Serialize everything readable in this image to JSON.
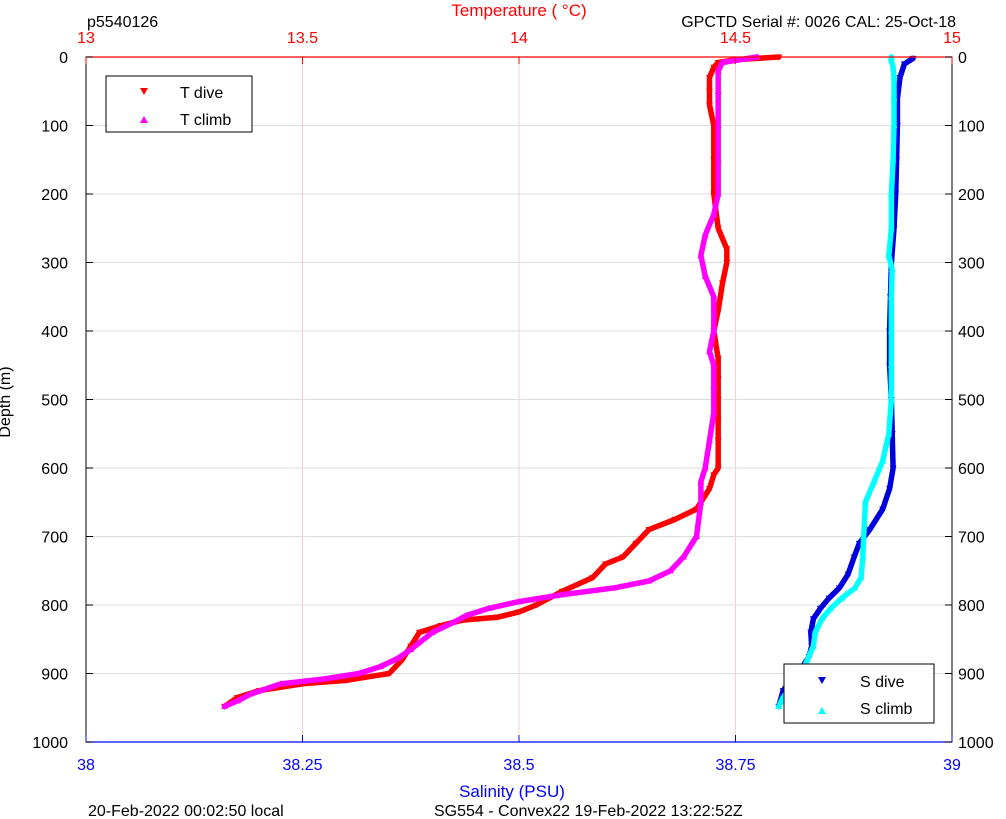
{
  "header": {
    "profile_id": "p5540126",
    "serial_info": "GPCTD Serial #: 0026 CAL: 25-Oct-18"
  },
  "footer": {
    "local_time": "20-Feb-2022 00:02:50 local",
    "mission_info": "SG554 - Convex22 19-Feb-2022 13:22:52Z"
  },
  "colors": {
    "temperature_axis": "#ff0000",
    "salinity_axis": "#0000ff",
    "t_dive": "#ff0000",
    "t_climb": "#ff00ff",
    "s_dive": "#0000dd",
    "s_climb": "#00ffff",
    "grid_temperature": "#ffcccc",
    "grid_depth": "#dddddd"
  },
  "chart_data": {
    "type": "line",
    "top_axis": {
      "label": "Temperature (    °C)",
      "range": [
        13,
        15
      ],
      "ticks": [
        13,
        13.5,
        14,
        14.5,
        15
      ],
      "tick_labels": [
        "13",
        "13.5",
        "14",
        "14.5",
        "15"
      ]
    },
    "bottom_axis": {
      "label": "Salinity (PSU)",
      "range": [
        38,
        39
      ],
      "ticks": [
        38,
        38.25,
        38.5,
        38.75,
        39
      ],
      "tick_labels": [
        "38",
        "38.25",
        "38.5",
        "38.75",
        "39"
      ]
    },
    "y_axis": {
      "label": "Depth (m)",
      "range": [
        0,
        1000
      ],
      "reversed": true,
      "ticks": [
        0,
        100,
        200,
        300,
        400,
        500,
        600,
        700,
        800,
        900,
        1000
      ],
      "tick_labels": [
        "0",
        "100",
        "200",
        "300",
        "400",
        "500",
        "600",
        "700",
        "800",
        "900",
        "1000"
      ]
    },
    "legend_temperature": {
      "placement": "top-left",
      "entries": [
        "T dive",
        "T climb"
      ]
    },
    "legend_salinity": {
      "placement": "bottom-right",
      "entries": [
        "S dive",
        "S climb"
      ]
    },
    "series": [
      {
        "name": "T dive",
        "axis": "temperature",
        "marker": "triangle-down",
        "points": [
          [
            14.6,
            0
          ],
          [
            14.5,
            4
          ],
          [
            14.46,
            8
          ],
          [
            14.45,
            15
          ],
          [
            14.44,
            30
          ],
          [
            14.44,
            50
          ],
          [
            14.44,
            70
          ],
          [
            14.45,
            100
          ],
          [
            14.45,
            150
          ],
          [
            14.45,
            200
          ],
          [
            14.46,
            250
          ],
          [
            14.48,
            280
          ],
          [
            14.48,
            300
          ],
          [
            14.47,
            330
          ],
          [
            14.46,
            370
          ],
          [
            14.45,
            400
          ],
          [
            14.46,
            440
          ],
          [
            14.46,
            470
          ],
          [
            14.46,
            500
          ],
          [
            14.46,
            530
          ],
          [
            14.46,
            560
          ],
          [
            14.46,
            600
          ],
          [
            14.45,
            610
          ],
          [
            14.44,
            630
          ],
          [
            14.41,
            660
          ],
          [
            14.36,
            675
          ],
          [
            14.3,
            690
          ],
          [
            14.27,
            710
          ],
          [
            14.24,
            730
          ],
          [
            14.2,
            740
          ],
          [
            14.17,
            760
          ],
          [
            14.1,
            780
          ],
          [
            14.07,
            790
          ],
          [
            14.04,
            800
          ],
          [
            14.0,
            810
          ],
          [
            13.95,
            818
          ],
          [
            13.87,
            822
          ],
          [
            13.82,
            830
          ],
          [
            13.77,
            840
          ],
          [
            13.75,
            860
          ],
          [
            13.73,
            880
          ],
          [
            13.7,
            900
          ],
          [
            13.6,
            910
          ],
          [
            13.5,
            915
          ],
          [
            13.4,
            925
          ],
          [
            13.35,
            935
          ],
          [
            13.32,
            948
          ]
        ]
      },
      {
        "name": "T climb",
        "axis": "temperature",
        "marker": "triangle-up",
        "points": [
          [
            13.32,
            948
          ],
          [
            13.35,
            940
          ],
          [
            13.38,
            930
          ],
          [
            13.45,
            915
          ],
          [
            13.55,
            908
          ],
          [
            13.63,
            900
          ],
          [
            13.68,
            890
          ],
          [
            13.72,
            878
          ],
          [
            13.75,
            865
          ],
          [
            13.8,
            840
          ],
          [
            13.85,
            825
          ],
          [
            13.88,
            815
          ],
          [
            13.93,
            805
          ],
          [
            14.0,
            795
          ],
          [
            14.1,
            785
          ],
          [
            14.22,
            775
          ],
          [
            14.3,
            765
          ],
          [
            14.35,
            750
          ],
          [
            14.38,
            730
          ],
          [
            14.41,
            700
          ],
          [
            14.42,
            650
          ],
          [
            14.42,
            620
          ],
          [
            14.43,
            600
          ],
          [
            14.44,
            560
          ],
          [
            14.45,
            520
          ],
          [
            14.45,
            480
          ],
          [
            14.45,
            450
          ],
          [
            14.44,
            430
          ],
          [
            14.45,
            400
          ],
          [
            14.45,
            350
          ],
          [
            14.43,
            320
          ],
          [
            14.42,
            290
          ],
          [
            14.43,
            260
          ],
          [
            14.45,
            230
          ],
          [
            14.46,
            200
          ],
          [
            14.46,
            150
          ],
          [
            14.46,
            100
          ],
          [
            14.46,
            50
          ],
          [
            14.46,
            20
          ],
          [
            14.47,
            8
          ],
          [
            14.5,
            5
          ],
          [
            14.53,
            2
          ],
          [
            14.55,
            0
          ]
        ]
      },
      {
        "name": "S dive",
        "axis": "salinity",
        "marker": "triangle-down",
        "points": [
          [
            38.955,
            2
          ],
          [
            38.945,
            10
          ],
          [
            38.94,
            30
          ],
          [
            38.937,
            60
          ],
          [
            38.937,
            100
          ],
          [
            38.936,
            150
          ],
          [
            38.935,
            200
          ],
          [
            38.933,
            250
          ],
          [
            38.93,
            300
          ],
          [
            38.929,
            350
          ],
          [
            38.928,
            400
          ],
          [
            38.928,
            450
          ],
          [
            38.93,
            500
          ],
          [
            38.931,
            550
          ],
          [
            38.932,
            600
          ],
          [
            38.928,
            630
          ],
          [
            38.92,
            660
          ],
          [
            38.905,
            690
          ],
          [
            38.893,
            710
          ],
          [
            38.887,
            730
          ],
          [
            38.88,
            755
          ],
          [
            38.87,
            775
          ],
          [
            38.858,
            790
          ],
          [
            38.848,
            805
          ],
          [
            38.84,
            820
          ],
          [
            38.837,
            840
          ],
          [
            38.838,
            860
          ],
          [
            38.835,
            875
          ],
          [
            38.826,
            893
          ],
          [
            38.815,
            908
          ],
          [
            38.805,
            925
          ],
          [
            38.8,
            948
          ]
        ]
      },
      {
        "name": "S climb",
        "axis": "salinity",
        "marker": "triangle-up",
        "points": [
          [
            38.8,
            948
          ],
          [
            38.805,
            935
          ],
          [
            38.813,
            920
          ],
          [
            38.822,
            905
          ],
          [
            38.828,
            895
          ],
          [
            38.833,
            880
          ],
          [
            38.84,
            860
          ],
          [
            38.842,
            840
          ],
          [
            38.85,
            820
          ],
          [
            38.86,
            805
          ],
          [
            38.873,
            790
          ],
          [
            38.888,
            775
          ],
          [
            38.895,
            760
          ],
          [
            38.897,
            730
          ],
          [
            38.898,
            700
          ],
          [
            38.9,
            650
          ],
          [
            38.91,
            620
          ],
          [
            38.92,
            590
          ],
          [
            38.927,
            550
          ],
          [
            38.93,
            500
          ],
          [
            38.93,
            450
          ],
          [
            38.93,
            400
          ],
          [
            38.93,
            350
          ],
          [
            38.931,
            310
          ],
          [
            38.927,
            290
          ],
          [
            38.93,
            250
          ],
          [
            38.93,
            200
          ],
          [
            38.932,
            150
          ],
          [
            38.933,
            100
          ],
          [
            38.933,
            60
          ],
          [
            38.933,
            30
          ],
          [
            38.932,
            15
          ],
          [
            38.93,
            5
          ],
          [
            38.93,
            0
          ]
        ]
      }
    ]
  }
}
